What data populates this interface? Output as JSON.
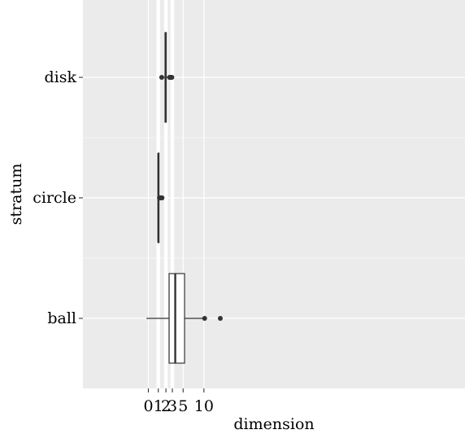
{
  "chart_data": {
    "type": "boxplot",
    "orientation": "horizontal",
    "xlabel": "dimension",
    "ylabel": "stratum",
    "x_scale": "sqrt",
    "xlim": [
      -0.4,
      15.2
    ],
    "x_ticks": [
      0,
      1,
      2,
      3,
      5,
      10
    ],
    "x_tick_labels": [
      "0",
      "1",
      "2",
      "3",
      "5",
      "10"
    ],
    "vertical_reference_lines": [
      1,
      2,
      3
    ],
    "categories": [
      "disk",
      "circle",
      "ball"
    ],
    "boxes": [
      {
        "category": "disk",
        "whisker_low": 1.6,
        "q1": 1.87,
        "median": 1.97,
        "q3": 2.05,
        "whisker_high": 2.49,
        "outliers": [
          1.42,
          2.55,
          2.6,
          2.65,
          2.7,
          2.75,
          2.8,
          2.85,
          2.92
        ]
      },
      {
        "category": "circle",
        "whisker_low": 0.95,
        "q1": 0.99,
        "median": 1.0,
        "q3": 1.02,
        "whisker_high": 1.08,
        "outliers": [
          1.13,
          1.17,
          1.2,
          1.24,
          1.28,
          1.32,
          1.36,
          1.41,
          1.47
        ]
      },
      {
        "category": "ball",
        "whisker_low": -0.15,
        "q1": 2.48,
        "median": 3.5,
        "q3": 5.3,
        "whisker_high": 9.6,
        "outliers": [
          10.2,
          15.0
        ]
      }
    ],
    "colors": {
      "panel_background": "#ebebeb",
      "grid": "#ffffff",
      "box_fill": "#ffffff",
      "box_stroke": "#333333",
      "outlier": "#333333"
    },
    "grid": true
  }
}
